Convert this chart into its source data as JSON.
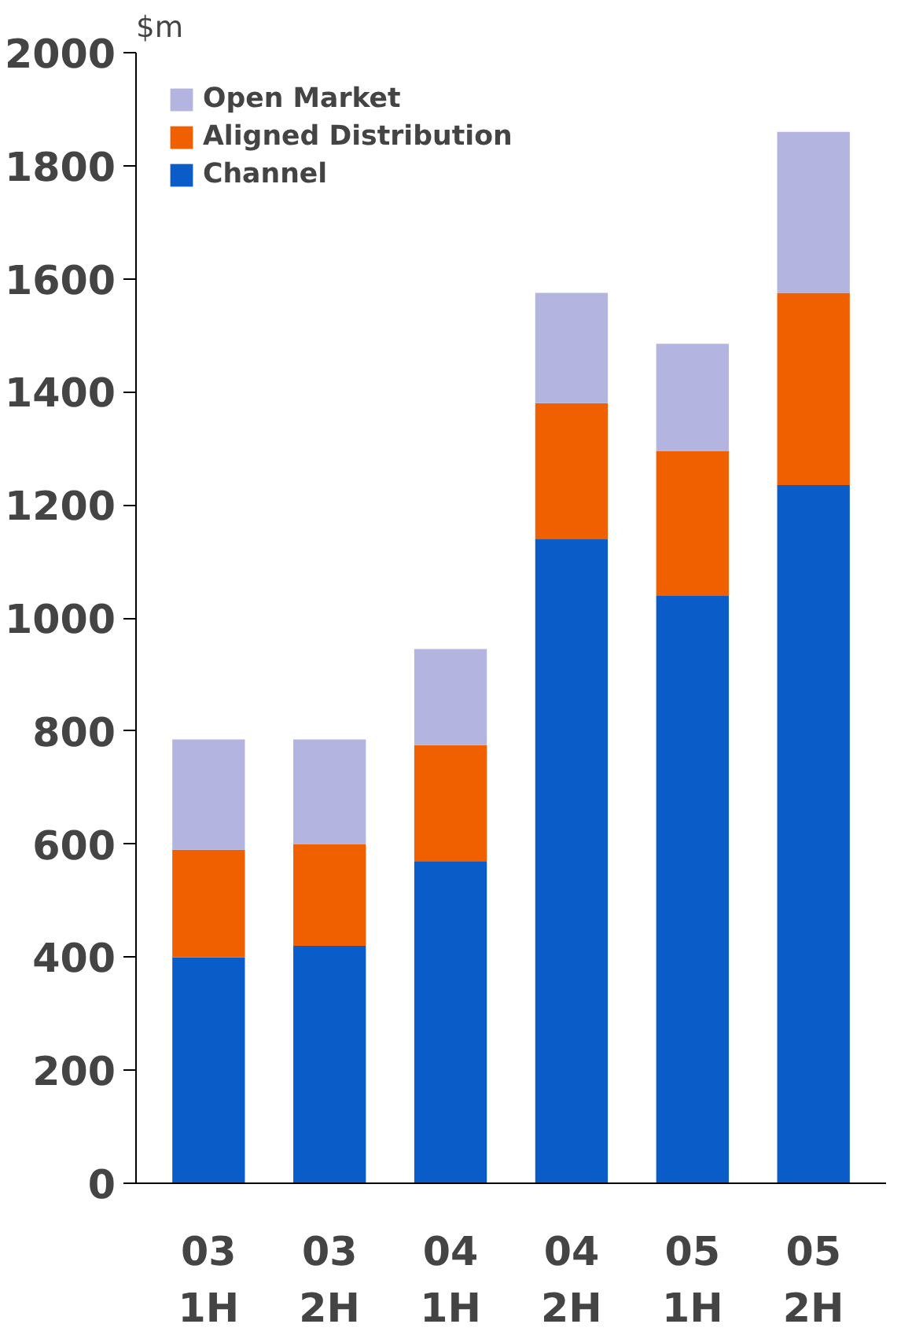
{
  "chart_data": {
    "type": "bar",
    "stacked": true,
    "ylabel": "$m",
    "categories": [
      "03\n1H",
      "03\n2H",
      "04\n1H",
      "04\n2H",
      "05\n1H",
      "05\n2H"
    ],
    "series": [
      {
        "name": "Channel",
        "color": "#0a5cc8",
        "values": [
          400,
          420,
          570,
          1140,
          1040,
          1235
        ]
      },
      {
        "name": "Aligned Distribution",
        "color": "#f06000",
        "values": [
          190,
          180,
          205,
          240,
          255,
          340
        ]
      },
      {
        "name": "Open Market",
        "color": "#b4b4e0",
        "values": [
          195,
          185,
          170,
          195,
          190,
          285
        ]
      }
    ],
    "ylim": [
      0,
      2000
    ],
    "yticks": [
      0,
      200,
      400,
      600,
      800,
      1000,
      1200,
      1400,
      1600,
      1800,
      2000
    ],
    "grid": false,
    "legend": "top left"
  }
}
